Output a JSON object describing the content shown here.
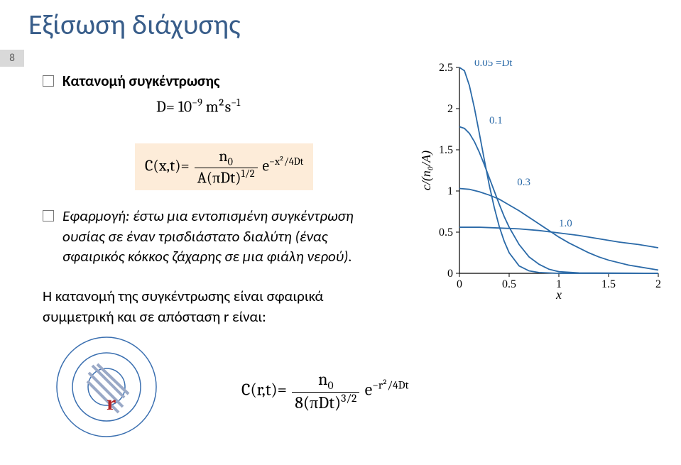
{
  "title": "Εξίσωση διάχυσης",
  "page_number": "8",
  "bullet1_label": "Κατανομή συγκέντρωσης",
  "eq1_lhs": "D",
  "eq1_eq": "=",
  "eq1_coeff": "10",
  "eq1_exp": "−9",
  "eq1_units": "m²s",
  "eq1_units_exp": "−1",
  "eq2_lhs": "C(x,t)",
  "eq2_eq": "=",
  "eq2_num": "n",
  "eq2_num_sub": "0",
  "eq2_den": "A(πDt)",
  "eq2_den_exp": "1/2",
  "eq2_ebase": "e",
  "eq2_esup": "−x²/4Dt",
  "bullet2_text": "Εφαρμογή: έστω μια εντοπισμένη συγκέντρωση ουσίας σε έναν τρισδιάστατο διαλύτη (ένας σφαιρικός κόκκος ζάχαρης σε μια φιάλη νερού).",
  "para2": "Η κατανομή της συγκέντρωσης είναι σφαιρικά συμμετρική και σε απόσταση r είναι:",
  "r_label": "r",
  "eq3_lhs": "C(r,t)",
  "eq3_eq": "=",
  "eq3_num": "n",
  "eq3_num_sub": "0",
  "eq3_den_coeff": "8",
  "eq3_den": "(πDt)",
  "eq3_den_exp": "3/2",
  "eq3_ebase": "e",
  "eq3_esup": "−r²/4Dt",
  "chart": {
    "type": "line",
    "background_color": "#ffffff",
    "axis_color": "#000000",
    "curve_color": "#2b6aa8",
    "curve_width": 1.8,
    "xlabel": "x",
    "ylabel": "c/(n₀/A)",
    "xlim": [
      0,
      2
    ],
    "ylim": [
      0,
      2.5
    ],
    "xticks": [
      0,
      0.5,
      1,
      1.5,
      2
    ],
    "yticks": [
      0,
      0.5,
      1,
      1.5,
      2,
      2.5
    ],
    "series": [
      {
        "label": "0.05 =Dt",
        "label_x": 0.15,
        "label_y": 2.5,
        "points": [
          [
            0.0,
            2.52
          ],
          [
            0.05,
            2.46
          ],
          [
            0.1,
            2.28
          ],
          [
            0.15,
            2.01
          ],
          [
            0.2,
            1.7
          ],
          [
            0.25,
            1.38
          ],
          [
            0.3,
            1.07
          ],
          [
            0.35,
            0.8
          ],
          [
            0.4,
            0.57
          ],
          [
            0.45,
            0.39
          ],
          [
            0.5,
            0.25
          ],
          [
            0.6,
            0.09
          ],
          [
            0.7,
            0.03
          ],
          [
            0.8,
            0.01
          ],
          [
            1.0,
            0.0
          ],
          [
            2.0,
            0.0
          ]
        ]
      },
      {
        "label": "0.1",
        "label_x": 0.3,
        "label_y": 1.8,
        "points": [
          [
            0.0,
            1.78
          ],
          [
            0.05,
            1.76
          ],
          [
            0.1,
            1.7
          ],
          [
            0.15,
            1.6
          ],
          [
            0.2,
            1.47
          ],
          [
            0.25,
            1.32
          ],
          [
            0.3,
            1.16
          ],
          [
            0.35,
            1.0
          ],
          [
            0.4,
            0.84
          ],
          [
            0.45,
            0.69
          ],
          [
            0.5,
            0.56
          ],
          [
            0.6,
            0.35
          ],
          [
            0.7,
            0.2
          ],
          [
            0.8,
            0.11
          ],
          [
            0.9,
            0.05
          ],
          [
            1.0,
            0.02
          ],
          [
            1.2,
            0.005
          ],
          [
            2.0,
            0.0
          ]
        ]
      },
      {
        "label": "0.3",
        "label_x": 0.58,
        "label_y": 1.05,
        "points": [
          [
            0.0,
            1.03
          ],
          [
            0.1,
            1.02
          ],
          [
            0.2,
            0.99
          ],
          [
            0.3,
            0.95
          ],
          [
            0.4,
            0.9
          ],
          [
            0.5,
            0.83
          ],
          [
            0.6,
            0.76
          ],
          [
            0.7,
            0.68
          ],
          [
            0.8,
            0.6
          ],
          [
            0.9,
            0.52
          ],
          [
            1.0,
            0.44
          ],
          [
            1.1,
            0.37
          ],
          [
            1.2,
            0.31
          ],
          [
            1.3,
            0.25
          ],
          [
            1.4,
            0.2
          ],
          [
            1.5,
            0.16
          ],
          [
            1.7,
            0.1
          ],
          [
            2.0,
            0.04
          ]
        ]
      },
      {
        "label": "1.0",
        "label_x": 1.0,
        "label_y": 0.55,
        "points": [
          [
            0.0,
            0.56
          ],
          [
            0.2,
            0.56
          ],
          [
            0.4,
            0.55
          ],
          [
            0.6,
            0.54
          ],
          [
            0.8,
            0.52
          ],
          [
            1.0,
            0.49
          ],
          [
            1.2,
            0.46
          ],
          [
            1.4,
            0.42
          ],
          [
            1.6,
            0.38
          ],
          [
            1.8,
            0.35
          ],
          [
            2.0,
            0.31
          ]
        ]
      }
    ]
  }
}
